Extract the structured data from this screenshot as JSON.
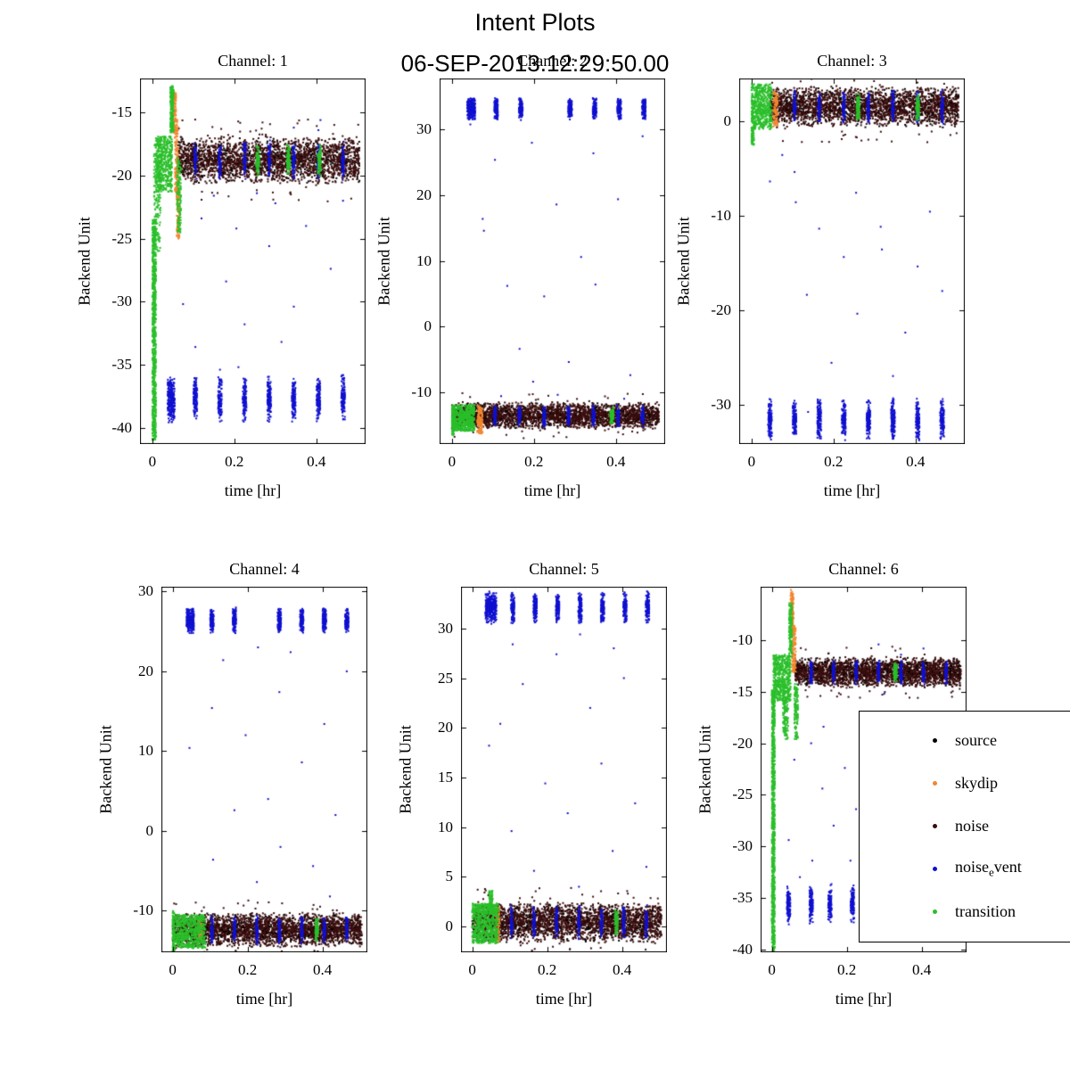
{
  "figure": {
    "title": "Intent Plots",
    "subtitle": "06-SEP-2013.12:29:50.00"
  },
  "colors": {
    "source": "#000000",
    "skydip": "#f2862e",
    "noise": "#3a0d0d",
    "noise_event": "#1010d0",
    "transition": "#2abf2a",
    "axis": "#000000",
    "background": "#ffffff"
  },
  "legend": {
    "entries": [
      {
        "name": "source",
        "pre": "source",
        "sub": "",
        "post": "",
        "label": "source",
        "color": "#000000"
      },
      {
        "name": "skydip",
        "pre": "skydip",
        "sub": "",
        "post": "",
        "label": "skydip",
        "color": "#f2862e"
      },
      {
        "name": "noise",
        "pre": "noise",
        "sub": "",
        "post": "",
        "label": "noise",
        "color": "#3a0d0d"
      },
      {
        "name": "noise-event",
        "pre": "noise",
        "sub": "e",
        "post": "vent",
        "label": "noise_event",
        "color": "#1010d0"
      },
      {
        "name": "transition",
        "pre": "transition",
        "sub": "",
        "post": "",
        "label": "transition",
        "color": "#2abf2a"
      }
    ]
  },
  "chart_data": [
    {
      "type": "scatter",
      "title": "Channel: 1",
      "xlabel": "time [hr]",
      "ylabel": "Backend Unit",
      "xlim": [
        -0.03,
        0.52
      ],
      "xticks": [
        0,
        0.2,
        0.4
      ],
      "ylim": [
        -41.3,
        -12.3
      ],
      "yticks": [
        -40,
        -35,
        -30,
        -25,
        -20,
        -15
      ],
      "series": {
        "noise_band": {
          "x0": 0.062,
          "x1": 0.505,
          "center": -18.8,
          "half": 1.3,
          "n": 2600
        },
        "stripe_xs": [
          0.105,
          0.165,
          0.225,
          0.285,
          0.345,
          0.405,
          0.465
        ],
        "transition_blob_xs": [
          0.257,
          0.332,
          0.407
        ],
        "event_clusters": {
          "xs": [
            0.042,
            0.05,
            0.105,
            0.165,
            0.225,
            0.285,
            0.345,
            0.405,
            0.465
          ],
          "center": -37.7,
          "spread": 1.6
        },
        "transition_segments": [
          [
            0.0,
            0.009,
            -41.0,
            -23.5,
            800
          ],
          [
            0.004,
            0.02,
            -26.0,
            -17.5,
            150
          ],
          [
            0.008,
            0.048,
            -21.3,
            -16.9,
            450
          ],
          [
            0.044,
            0.052,
            -16.6,
            -12.9,
            200
          ],
          [
            0.06,
            0.07,
            -24.6,
            -18.6,
            140
          ]
        ],
        "skydip_segments": [
          [
            0.05,
            0.058,
            -16.6,
            -13.4,
            110
          ],
          [
            0.055,
            0.063,
            -21.5,
            -15.5,
            140
          ],
          [
            0.059,
            0.067,
            -25.0,
            -21.0,
            100
          ]
        ],
        "sparse_events": [
          [
            0.075,
            -30.2
          ],
          [
            0.105,
            -33.6
          ],
          [
            0.12,
            -23.4
          ],
          [
            0.15,
            -21.6
          ],
          [
            0.165,
            -35.4
          ],
          [
            0.18,
            -28.4
          ],
          [
            0.205,
            -24.2
          ],
          [
            0.21,
            -35.2
          ],
          [
            0.225,
            -31.8
          ],
          [
            0.255,
            -21.4
          ],
          [
            0.285,
            -25.6
          ],
          [
            0.3,
            -22.2
          ],
          [
            0.315,
            -33.2
          ],
          [
            0.345,
            -30.4
          ],
          [
            0.345,
            -16.2
          ],
          [
            0.375,
            -24.0
          ],
          [
            0.405,
            -16.4
          ],
          [
            0.41,
            -15.6
          ],
          [
            0.435,
            -27.4
          ],
          [
            0.465,
            -22.0
          ]
        ]
      }
    },
    {
      "type": "scatter",
      "title": "Channel: 2",
      "xlabel": "time [hr]",
      "ylabel": "Backend Unit",
      "xlim": [
        -0.03,
        0.52
      ],
      "xticks": [
        0,
        0.2,
        0.4
      ],
      "ylim": [
        -17.9,
        37.8
      ],
      "yticks": [
        -10,
        0,
        10,
        20,
        30
      ],
      "series": {
        "noise_band": {
          "x0": 0.0,
          "x1": 0.505,
          "center": -13.6,
          "half": 1.4,
          "n": 2800
        },
        "stripe_xs": [
          0.105,
          0.165,
          0.225,
          0.285,
          0.345,
          0.405,
          0.465
        ],
        "transition_blob_xs": [
          0.39
        ],
        "event_clusters": {
          "xs": [
            0.042,
            0.052,
            0.108,
            0.168,
            0.288,
            0.348,
            0.408,
            0.468
          ],
          "center": 33.2,
          "spread": 1.5
        },
        "transition_segments": [
          [
            0.0,
            0.055,
            -15.9,
            -11.9,
            520
          ],
          [
            0.0,
            0.006,
            -16.5,
            -12.0,
            80
          ]
        ],
        "skydip_segments": [
          [
            0.062,
            0.075,
            -16.3,
            -12.1,
            130
          ]
        ],
        "sparse_events": [
          [
            0.045,
            30.8
          ],
          [
            0.075,
            16.4
          ],
          [
            0.078,
            14.6
          ],
          [
            0.105,
            25.4
          ],
          [
            0.12,
            -10.6
          ],
          [
            0.135,
            6.2
          ],
          [
            0.165,
            -3.4
          ],
          [
            0.195,
            28.0
          ],
          [
            0.198,
            -8.4
          ],
          [
            0.225,
            4.6
          ],
          [
            0.255,
            18.6
          ],
          [
            0.258,
            -10.4
          ],
          [
            0.285,
            -5.4
          ],
          [
            0.315,
            10.6
          ],
          [
            0.345,
            26.4
          ],
          [
            0.35,
            6.4
          ],
          [
            0.405,
            19.4
          ],
          [
            0.42,
            -11.0
          ],
          [
            0.435,
            -7.4
          ],
          [
            0.465,
            29.0
          ]
        ]
      }
    },
    {
      "type": "scatter",
      "title": "Channel: 3",
      "xlabel": "time [hr]",
      "ylabel": "Backend Unit",
      "xlim": [
        -0.03,
        0.52
      ],
      "xticks": [
        0,
        0.2,
        0.4
      ],
      "ylim": [
        -34.2,
        4.5
      ],
      "yticks": [
        -30,
        -20,
        -10,
        0
      ],
      "series": {
        "noise_band": {
          "x0": 0.045,
          "x1": 0.505,
          "center": 1.5,
          "half": 1.5,
          "n": 2700
        },
        "stripe_xs": [
          0.105,
          0.165,
          0.225,
          0.285,
          0.345,
          0.405,
          0.465
        ],
        "transition_blob_xs": [
          0.26,
          0.405
        ],
        "event_clusters": {
          "xs": [
            0.045,
            0.105,
            0.165,
            0.225,
            0.285,
            0.345,
            0.405,
            0.465
          ],
          "center": -31.6,
          "spread": 1.9
        },
        "transition_segments": [
          [
            0.0,
            0.05,
            -0.9,
            3.9,
            500
          ],
          [
            0.0,
            0.006,
            -2.6,
            1.0,
            80
          ]
        ],
        "skydip_segments": [
          [
            0.053,
            0.064,
            -0.6,
            3.1,
            100
          ]
        ],
        "sparse_events": [
          [
            0.045,
            -6.4
          ],
          [
            0.075,
            -3.6
          ],
          [
            0.105,
            -5.4
          ],
          [
            0.108,
            -8.6
          ],
          [
            0.135,
            -18.4
          ],
          [
            0.138,
            -30.8
          ],
          [
            0.165,
            -11.4
          ],
          [
            0.195,
            -25.6
          ],
          [
            0.225,
            -14.4
          ],
          [
            0.255,
            -7.6
          ],
          [
            0.258,
            -20.4
          ],
          [
            0.285,
            -30.4
          ],
          [
            0.315,
            -11.2
          ],
          [
            0.318,
            -13.6
          ],
          [
            0.345,
            -27.0
          ],
          [
            0.375,
            -22.4
          ],
          [
            0.405,
            -15.4
          ],
          [
            0.435,
            -9.6
          ],
          [
            0.465,
            -18.0
          ]
        ]
      }
    },
    {
      "type": "scatter",
      "title": "Channel: 4",
      "xlabel": "time [hr]",
      "ylabel": "Backend Unit",
      "xlim": [
        -0.03,
        0.52
      ],
      "xticks": [
        0,
        0.2,
        0.4
      ],
      "ylim": [
        -15.2,
        30.6
      ],
      "yticks": [
        -10,
        0,
        10,
        20,
        30
      ],
      "series": {
        "noise_band": {
          "x0": 0.0,
          "x1": 0.505,
          "center": -12.4,
          "half": 1.5,
          "n": 2800
        },
        "stripe_xs": [
          0.105,
          0.165,
          0.225,
          0.285,
          0.345,
          0.405,
          0.465
        ],
        "transition_blob_xs": [
          0.385
        ],
        "event_clusters": {
          "xs": [
            0.042,
            0.052,
            0.105,
            0.165,
            0.285,
            0.345,
            0.405,
            0.465
          ],
          "center": 26.4,
          "spread": 1.4
        },
        "transition_segments": [
          [
            0.0,
            0.088,
            -14.7,
            -10.5,
            600
          ],
          [
            0.0,
            0.006,
            -15.6,
            -10.0,
            80
          ]
        ],
        "skydip_segments": [
          [
            0.068,
            0.078,
            -13.6,
            -11.0,
            60
          ]
        ],
        "sparse_events": [
          [
            0.045,
            10.4
          ],
          [
            0.105,
            15.4
          ],
          [
            0.108,
            -3.6
          ],
          [
            0.135,
            21.4
          ],
          [
            0.165,
            2.6
          ],
          [
            0.195,
            12.0
          ],
          [
            0.225,
            -6.4
          ],
          [
            0.228,
            23.0
          ],
          [
            0.255,
            4.0
          ],
          [
            0.285,
            17.4
          ],
          [
            0.288,
            -2.0
          ],
          [
            0.315,
            22.4
          ],
          [
            0.345,
            8.6
          ],
          [
            0.375,
            -4.4
          ],
          [
            0.405,
            13.4
          ],
          [
            0.42,
            -8.2
          ],
          [
            0.435,
            2.0
          ],
          [
            0.465,
            20.0
          ]
        ]
      }
    },
    {
      "type": "scatter",
      "title": "Channel: 5",
      "xlabel": "time [hr]",
      "ylabel": "Backend Unit",
      "xlim": [
        -0.03,
        0.52
      ],
      "xticks": [
        0,
        0.2,
        0.4
      ],
      "ylim": [
        -2.6,
        34.2
      ],
      "yticks": [
        0,
        5,
        10,
        15,
        20,
        25,
        30
      ],
      "series": {
        "noise_band": {
          "x0": 0.0,
          "x1": 0.505,
          "center": 0.4,
          "half": 1.4,
          "n": 2800
        },
        "stripe_xs": [
          0.105,
          0.165,
          0.225,
          0.285,
          0.345,
          0.405,
          0.465
        ],
        "transition_blob_xs": [
          0.385
        ],
        "event_clusters": {
          "xs": [
            0.04,
            0.05,
            0.06,
            0.108,
            0.168,
            0.228,
            0.288,
            0.348,
            0.408,
            0.468
          ],
          "center": 32.1,
          "spread": 1.4
        },
        "transition_segments": [
          [
            0.0,
            0.07,
            -1.7,
            2.3,
            620
          ],
          [
            0.044,
            0.054,
            1.4,
            3.6,
            90
          ]
        ],
        "skydip_segments": [
          [
            0.062,
            0.074,
            -1.6,
            1.9,
            100
          ]
        ],
        "sparse_events": [
          [
            0.045,
            18.2
          ],
          [
            0.075,
            20.4
          ],
          [
            0.105,
            9.6
          ],
          [
            0.108,
            28.4
          ],
          [
            0.135,
            24.4
          ],
          [
            0.165,
            5.6
          ],
          [
            0.195,
            14.4
          ],
          [
            0.225,
            27.4
          ],
          [
            0.255,
            11.4
          ],
          [
            0.285,
            4.0
          ],
          [
            0.288,
            29.4
          ],
          [
            0.315,
            22.0
          ],
          [
            0.345,
            16.4
          ],
          [
            0.375,
            7.6
          ],
          [
            0.378,
            28.0
          ],
          [
            0.405,
            25.0
          ],
          [
            0.435,
            12.4
          ],
          [
            0.465,
            6.0
          ]
        ]
      }
    },
    {
      "type": "scatter",
      "title": "Channel: 6",
      "xlabel": "time [hr]",
      "ylabel": "Backend Unit",
      "xlim": [
        -0.03,
        0.52
      ],
      "xticks": [
        0,
        0.2,
        0.4
      ],
      "ylim": [
        -40.3,
        -4.8
      ],
      "yticks": [
        -40,
        -35,
        -30,
        -25,
        -20,
        -15,
        -10
      ],
      "series": {
        "noise_band": {
          "x0": 0.062,
          "x1": 0.505,
          "center": -13.1,
          "half": 1.0,
          "n": 2600
        },
        "stripe_xs": [
          0.105,
          0.165,
          0.225,
          0.285,
          0.345,
          0.405,
          0.465
        ],
        "transition_blob_xs": [
          0.33
        ],
        "event_clusters": {
          "xs": [
            0.045,
            0.105,
            0.155,
            0.215
          ],
          "center": -35.7,
          "spread": 1.7
        },
        "transition_segments": [
          [
            0.0,
            0.008,
            -40.2,
            -14.8,
            900
          ],
          [
            0.004,
            0.05,
            -15.9,
            -11.4,
            480
          ],
          [
            0.03,
            0.044,
            -19.6,
            -15.4,
            130
          ],
          [
            0.046,
            0.054,
            -11.6,
            -6.4,
            160
          ],
          [
            0.06,
            0.07,
            -19.6,
            -14.2,
            130
          ]
        ],
        "skydip_segments": [
          [
            0.05,
            0.058,
            -9.2,
            -5.1,
            110
          ],
          [
            0.054,
            0.064,
            -13.2,
            -8.6,
            130
          ]
        ],
        "sparse_events": [
          [
            0.045,
            -29.4
          ],
          [
            0.06,
            -21.6
          ],
          [
            0.075,
            -33.0
          ],
          [
            0.105,
            -20.0
          ],
          [
            0.108,
            -31.4
          ],
          [
            0.135,
            -24.4
          ],
          [
            0.138,
            -18.4
          ],
          [
            0.165,
            -28.0
          ],
          [
            0.195,
            -22.4
          ],
          [
            0.21,
            -31.4
          ],
          [
            0.225,
            -26.4
          ],
          [
            0.285,
            -10.4
          ],
          [
            0.3,
            -15.2
          ],
          [
            0.345,
            -11.4
          ],
          [
            0.405,
            -10.8
          ]
        ]
      }
    }
  ]
}
